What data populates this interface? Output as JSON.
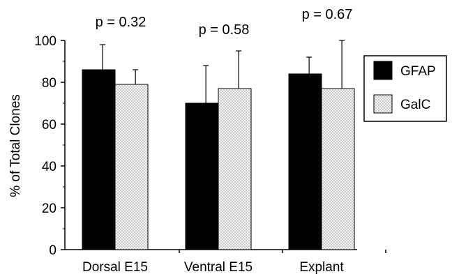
{
  "chart_data": {
    "type": "bar",
    "title": "",
    "xlabel": "",
    "ylabel": "% of Total Clones",
    "ylim": [
      0,
      100
    ],
    "yticks": [
      "0",
      "20",
      "40",
      "60",
      "80",
      "100"
    ],
    "grid": false,
    "legend_position": "right",
    "categories": [
      "Dorsal E15",
      "Ventral E15",
      "Explant"
    ],
    "annotations": [
      "p = 0.32",
      "p = 0.58",
      "p = 0.67"
    ],
    "series": [
      {
        "name": "GFAP",
        "fill": "solid",
        "color": "#000000",
        "values": [
          86,
          70,
          84
        ],
        "errors": [
          12,
          18,
          8
        ]
      },
      {
        "name": "GalC",
        "fill": "stipple",
        "color": "#e6e6e6",
        "values": [
          79,
          77,
          77
        ],
        "errors": [
          7,
          18,
          23
        ]
      }
    ]
  }
}
